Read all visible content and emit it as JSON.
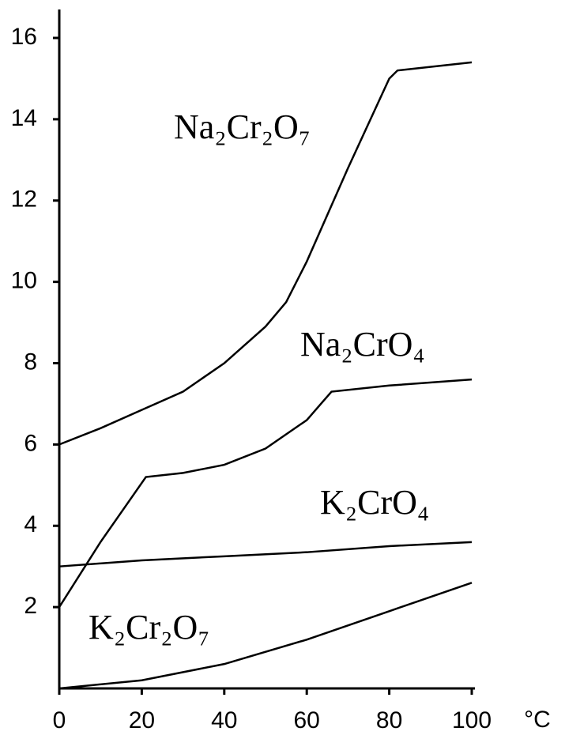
{
  "chart_data": {
    "type": "line",
    "xlabel": "°C",
    "xlim": [
      0,
      100
    ],
    "xticks": [
      0,
      20,
      40,
      60,
      80,
      100
    ],
    "ylim": [
      0,
      16.7
    ],
    "yticks": [
      2,
      4,
      6,
      8,
      10,
      12,
      14,
      16
    ],
    "series": [
      {
        "name": "Na₂Cr₂O₇",
        "color": "#000000",
        "x": [
          0,
          10,
          20,
          30,
          40,
          50,
          55,
          60,
          70,
          80,
          82,
          100
        ],
        "values": [
          6.0,
          6.4,
          6.85,
          7.3,
          8.0,
          8.9,
          9.5,
          10.5,
          12.8,
          15.0,
          15.2,
          15.4
        ]
      },
      {
        "name": "Na₂CrO₄",
        "color": "#000000",
        "x": [
          0,
          10,
          21,
          30,
          40,
          50,
          60,
          66,
          80,
          100
        ],
        "values": [
          2.0,
          3.6,
          5.2,
          5.3,
          5.5,
          5.9,
          6.6,
          7.3,
          7.45,
          7.6
        ]
      },
      {
        "name": "K₂CrO₄",
        "color": "#000000",
        "x": [
          0,
          20,
          40,
          60,
          80,
          100
        ],
        "values": [
          3.0,
          3.15,
          3.25,
          3.35,
          3.5,
          3.6
        ]
      },
      {
        "name": "K₂Cr₂O₇",
        "color": "#000000",
        "x": [
          0,
          20,
          40,
          60,
          80,
          100
        ],
        "values": [
          0.0,
          0.2,
          0.6,
          1.2,
          1.9,
          2.6
        ]
      }
    ]
  }
}
